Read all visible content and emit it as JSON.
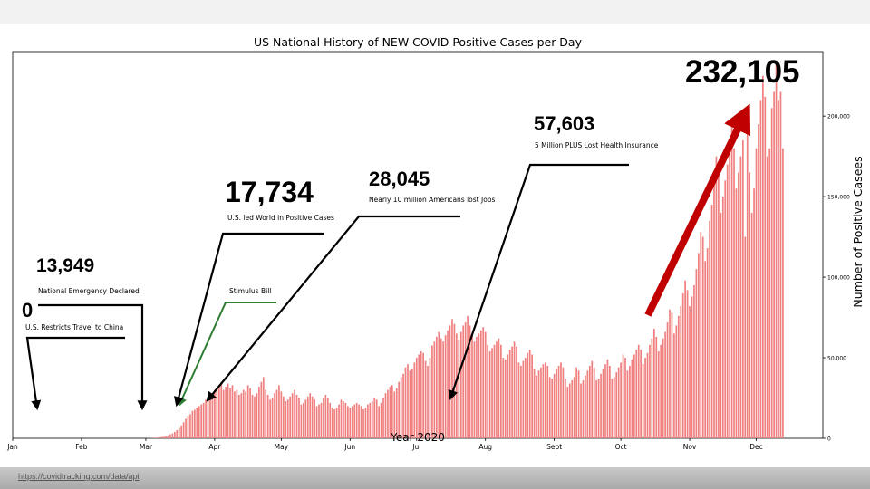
{
  "source": "https://covidtracking.com/data/api",
  "colors": {
    "bar": "#f08080",
    "red_arrow": "#c00000",
    "stimulus_line": "#2e7d32"
  },
  "chart_data": {
    "type": "bar",
    "title": "US National History of NEW COVID Positive Cases per Day",
    "xlabel": "Year 2020",
    "ylabel": "Number of Positive Casees",
    "y_axis_side": "right",
    "ylim": [
      0,
      240000
    ],
    "yticks": [
      0,
      50000,
      100000,
      150000,
      200000
    ],
    "ytick_labels": [
      "0",
      "50,000",
      "100,000",
      "150,000",
      "200,000"
    ],
    "xticks": [
      {
        "date": "2020-01-01",
        "label": "Jan"
      },
      {
        "date": "2020-02-01",
        "label": "Feb"
      },
      {
        "date": "2020-03-01",
        "label": "Mar"
      },
      {
        "date": "2020-04-01",
        "label": "Apr"
      },
      {
        "date": "2020-05-01",
        "label": "May"
      },
      {
        "date": "2020-06-01",
        "label": "Jun"
      },
      {
        "date": "2020-07-01",
        "label": "Jul"
      },
      {
        "date": "2020-08-01",
        "label": "Aug"
      },
      {
        "date": "2020-09-01",
        "label": "Sept"
      },
      {
        "date": "2020-10-01",
        "label": "Oct"
      },
      {
        "date": "2020-11-01",
        "label": "Nov"
      },
      {
        "date": "2020-12-01",
        "label": "Dec"
      }
    ],
    "xlim": [
      "2020-01-01",
      "2020-12-31"
    ],
    "series": [
      {
        "values_weekly": [
          {
            "week_of": "2020-03-02",
            "values": [
              50,
              100,
              150,
              300,
              400,
              600,
              800
            ]
          },
          {
            "week_of": "2020-03-09",
            "values": [
              1000,
              1200,
              1800,
              2500,
              3000,
              4000,
              5000
            ]
          },
          {
            "week_of": "2020-03-16",
            "values": [
              6500,
              8000,
              10000,
              12000,
              13949,
              15000,
              17000
            ]
          },
          {
            "week_of": "2020-03-23",
            "values": [
              17734,
              19000,
              20000,
              21000,
              22000,
              24000,
              26000
            ]
          },
          {
            "week_of": "2020-03-30",
            "values": [
              27000,
              28045,
              30000,
              31000,
              33000,
              35000,
              30000
            ]
          },
          {
            "week_of": "2020-04-06",
            "values": [
              32000,
              34000,
              31000,
              33000,
              29000,
              30000,
              27000
            ]
          },
          {
            "week_of": "2020-04-13",
            "values": [
              28000,
              30000,
              29000,
              33000,
              31000,
              27000,
              26000
            ]
          },
          {
            "week_of": "2020-04-20",
            "values": [
              28000,
              32000,
              35000,
              38000,
              30000,
              27000,
              24000
            ]
          },
          {
            "week_of": "2020-04-27",
            "values": [
              25000,
              28000,
              30000,
              33000,
              29000,
              26000,
              23000
            ]
          },
          {
            "week_of": "2020-05-04",
            "values": [
              24000,
              26000,
              28000,
              30000,
              27000,
              25000,
              21000
            ]
          },
          {
            "week_of": "2020-05-11",
            "values": [
              22000,
              24000,
              26000,
              28000,
              26000,
              24000,
              20000
            ]
          },
          {
            "week_of": "2020-05-18",
            "values": [
              21000,
              22000,
              25000,
              27000,
              25000,
              22000,
              19000
            ]
          },
          {
            "week_of": "2020-05-25",
            "values": [
              18000,
              19000,
              21000,
              24000,
              23000,
              22000,
              20000
            ]
          },
          {
            "week_of": "2020-06-01",
            "values": [
              19000,
              20000,
              21000,
              22000,
              21000,
              20000,
              18000
            ]
          },
          {
            "week_of": "2020-06-08",
            "values": [
              19000,
              21000,
              22000,
              23000,
              25000,
              24000,
              20000
            ]
          },
          {
            "week_of": "2020-06-15",
            "values": [
              22000,
              25000,
              28000,
              30000,
              32000,
              33000,
              29000
            ]
          },
          {
            "week_of": "2020-06-22",
            "values": [
              31000,
              35000,
              38000,
              40000,
              44000,
              46000,
              42000
            ]
          },
          {
            "week_of": "2020-06-29",
            "values": [
              43000,
              47000,
              50000,
              52000,
              54000,
              53000,
              48000
            ]
          },
          {
            "week_of": "2020-07-06",
            "values": [
              45000,
              50000,
              57603,
              60000,
              63000,
              66000,
              62000
            ]
          },
          {
            "week_of": "2020-07-13",
            "values": [
              60000,
              64000,
              67000,
              70000,
              74000,
              71000,
              65000
            ]
          },
          {
            "week_of": "2020-07-20",
            "values": [
              61000,
              66000,
              70000,
              72000,
              76000,
              70000,
              64000
            ]
          },
          {
            "week_of": "2020-07-27",
            "values": [
              60000,
              63000,
              65000,
              67000,
              69000,
              66000,
              58000
            ]
          },
          {
            "week_of": "2020-08-03",
            "values": [
              54000,
              56000,
              58000,
              60000,
              62000,
              58000,
              50000
            ]
          },
          {
            "week_of": "2020-08-10",
            "values": [
              49000,
              52000,
              55000,
              57000,
              60000,
              57000,
              47000
            ]
          },
          {
            "week_of": "2020-08-17",
            "values": [
              45000,
              48000,
              50000,
              53000,
              55000,
              52000,
              43000
            ]
          },
          {
            "week_of": "2020-08-24",
            "values": [
              39000,
              42000,
              44000,
              46000,
              47000,
              45000,
              38000
            ]
          },
          {
            "week_of": "2020-08-31",
            "values": [
              37000,
              40000,
              43000,
              45000,
              47000,
              44000,
              37000
            ]
          },
          {
            "week_of": "2020-09-07",
            "values": [
              32000,
              34000,
              36000,
              38000,
              44000,
              42000,
              34000
            ]
          },
          {
            "week_of": "2020-09-14",
            "values": [
              36000,
              39000,
              42000,
              45000,
              48000,
              44000,
              36000
            ]
          },
          {
            "week_of": "2020-09-21",
            "values": [
              37000,
              40000,
              43000,
              46000,
              49000,
              45000,
              37000
            ]
          },
          {
            "week_of": "2020-09-28",
            "values": [
              38000,
              41000,
              44000,
              47000,
              52000,
              50000,
              42000
            ]
          },
          {
            "week_of": "2020-10-05",
            "values": [
              45000,
              49000,
              52000,
              55000,
              58000,
              55000,
              46000
            ]
          },
          {
            "week_of": "2020-10-12",
            "values": [
              50000,
              53000,
              58000,
              62000,
              68000,
              63000,
              54000
            ]
          },
          {
            "week_of": "2020-10-19",
            "values": [
              58000,
              62000,
              66000,
              72000,
              80000,
              78000,
              65000
            ]
          },
          {
            "week_of": "2020-10-26",
            "values": [
              70000,
              76000,
              82000,
              90000,
              98000,
              92000,
              82000
            ]
          },
          {
            "week_of": "2020-11-02",
            "values": [
              88000,
              95000,
              105000,
              115000,
              128000,
              125000,
              110000
            ]
          },
          {
            "week_of": "2020-11-09",
            "values": [
              118000,
              135000,
              145000,
              160000,
              175000,
              165000,
              140000
            ]
          },
          {
            "week_of": "2020-11-16",
            "values": [
              150000,
              160000,
              170000,
              185000,
              195000,
              180000,
              155000
            ]
          },
          {
            "week_of": "2020-11-23",
            "values": [
              165000,
              175000,
              185000,
              125000,
              195000,
              165000,
              140000
            ]
          },
          {
            "week_of": "2020-11-30",
            "values": [
              155000,
              180000,
              195000,
              210000,
              225000,
              212000,
              175000
            ]
          },
          {
            "week_of": "2020-12-07",
            "values": [
              180000,
              205000,
              215000,
              232105,
              210000,
              215000,
              180000
            ]
          }
        ]
      }
    ],
    "annotations": [
      {
        "value_label": "0",
        "caption": "U.S. Restricts Travel to China",
        "points_to": "2020-02-02"
      },
      {
        "value_label": "13,949",
        "caption": "National Emergency Declared",
        "points_to": "2020-03-13"
      },
      {
        "value_label": "",
        "caption": "Stimulus Bill",
        "points_to": "2020-03-27"
      },
      {
        "value_label": "17,734",
        "caption": "U.S. led World in Positive Cases",
        "points_to": "2020-03-26"
      },
      {
        "value_label": "28,045",
        "caption": "Nearly 10 million Americans lost Jobs",
        "points_to": "2020-04-02"
      },
      {
        "value_label": "57,603",
        "caption": "5 Million PLUS Lost Health Insurance",
        "points_to": "2020-07-15"
      },
      {
        "value_label": "232,105",
        "caption": "",
        "points_to": "2020-11-10"
      }
    ]
  }
}
